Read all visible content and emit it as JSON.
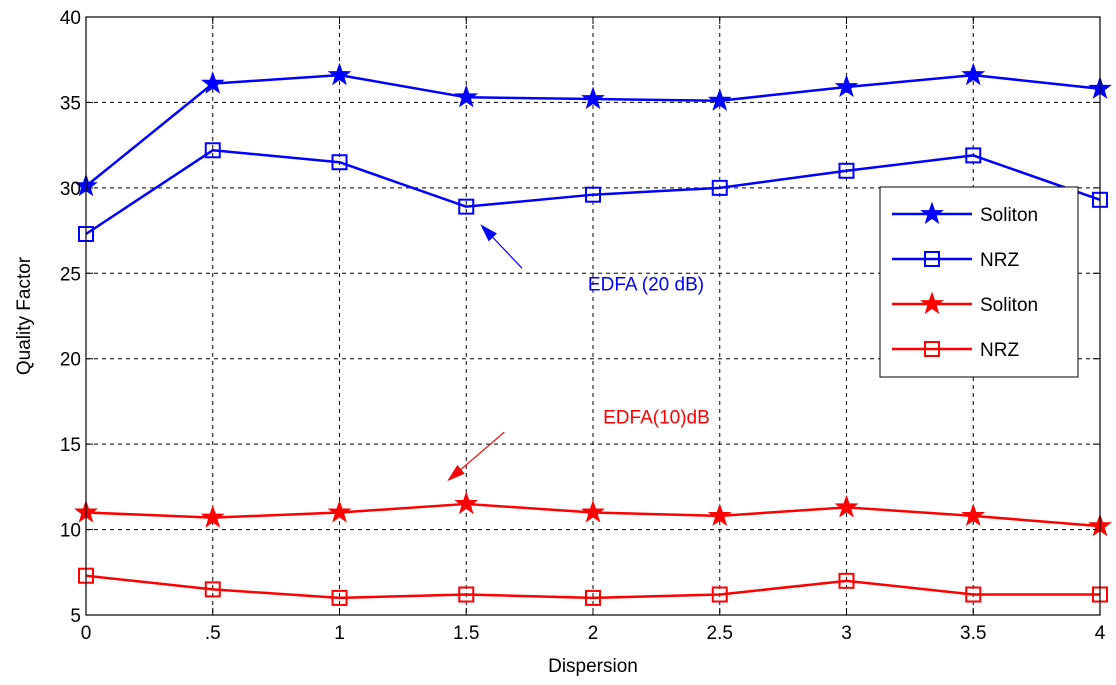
{
  "chart_data": {
    "type": "line",
    "title": "",
    "xlabel": "Dispersion",
    "ylabel": "Quality Factor",
    "x": [
      0,
      0.5,
      1,
      1.5,
      2,
      2.5,
      3,
      3.5,
      4
    ],
    "x_tick_labels": [
      "0",
      ".5",
      "1",
      "1.5",
      "2",
      "2.5",
      "3",
      "3.5",
      "4"
    ],
    "y_ticks": [
      5,
      10,
      15,
      20,
      25,
      30,
      35,
      40
    ],
    "y_tick_labels": [
      "5",
      "10",
      "15",
      "20",
      "25",
      "30",
      "35",
      "40"
    ],
    "xlim": [
      0,
      4
    ],
    "ylim": [
      5,
      40
    ],
    "grid": true,
    "grid_style": "dashed",
    "legend_position": "right",
    "series": [
      {
        "name": "Soliton",
        "color": "#0000ff",
        "marker": "star",
        "values": [
          30.1,
          36.1,
          36.6,
          35.3,
          35.2,
          35.1,
          35.9,
          36.6,
          35.8
        ]
      },
      {
        "name": "NRZ",
        "color": "#0000ff",
        "marker": "square",
        "values": [
          27.3,
          32.2,
          31.5,
          28.9,
          29.6,
          30.0,
          31.0,
          31.9,
          29.3
        ]
      },
      {
        "name": "Soliton",
        "color": "#ff0000",
        "marker": "star",
        "values": [
          11.0,
          10.7,
          11.0,
          11.5,
          11.0,
          10.8,
          11.3,
          10.8,
          10.2
        ]
      },
      {
        "name": "NRZ",
        "color": "#ff0000",
        "marker": "square",
        "values": [
          7.3,
          6.5,
          6.0,
          6.2,
          6.0,
          6.2,
          7.0,
          6.2,
          6.2
        ]
      }
    ],
    "annotations": [
      {
        "text": "EDFA (20 dB)",
        "color": "#0000ff",
        "text_x": 1.98,
        "text_y": 24.0,
        "tail_x": 1.72,
        "tail_y": 25.3,
        "head_x": 1.56,
        "head_y": 27.8
      },
      {
        "text": "EDFA(10)dB",
        "color": "#ff0000",
        "text_x": 2.04,
        "text_y": 16.2,
        "tail_x": 1.65,
        "tail_y": 15.7,
        "head_x": 1.43,
        "head_y": 12.9
      }
    ]
  }
}
